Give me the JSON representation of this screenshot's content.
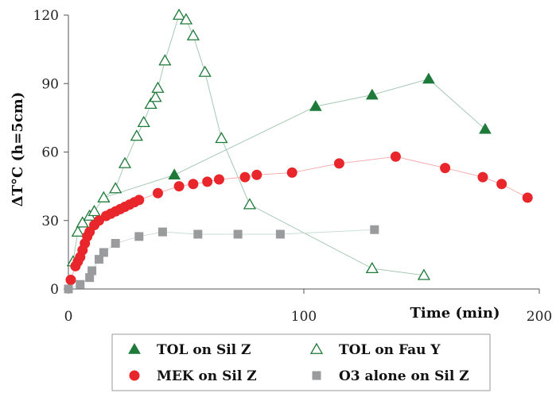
{
  "chart_data": {
    "type": "scatter",
    "xlabel": "Time (min)",
    "ylabel": "ΔT°C (h=5cm)",
    "xlim": [
      0,
      200
    ],
    "ylim": [
      0,
      120
    ],
    "x_ticks": [
      "0",
      "100",
      "200"
    ],
    "y_ticks": [
      "0",
      "30",
      "60",
      "90",
      "120"
    ],
    "grid": false,
    "legend_position": "bottom",
    "series": [
      {
        "name": "TOL on Sil Z",
        "marker": "filled-triangle",
        "color": "#1f7a3a",
        "x": [
          15,
          45,
          105,
          129,
          153,
          177
        ],
        "y": [
          40,
          50,
          80,
          85,
          92,
          70
        ]
      },
      {
        "name": "TOL on Fau Y",
        "marker": "open-triangle",
        "color": "#1f7a3a",
        "x": [
          2,
          4,
          6,
          9,
          11,
          15,
          20,
          24,
          29,
          32,
          35,
          37,
          38,
          41,
          47,
          50,
          53,
          58,
          65,
          77,
          129,
          151
        ],
        "y": [
          12,
          25,
          29,
          32,
          34,
          40,
          44,
          55,
          67,
          73,
          81,
          84,
          88,
          100,
          120,
          118,
          111,
          95,
          66,
          37,
          9,
          6
        ]
      },
      {
        "name": "MEK on Sil Z",
        "marker": "filled-circle",
        "color": "#e8262b",
        "x": [
          1,
          3,
          4,
          5,
          6,
          7,
          8,
          9,
          11,
          13,
          16,
          18,
          20,
          22,
          24,
          26,
          28,
          30,
          38,
          47,
          53,
          59,
          64,
          75,
          80,
          95,
          115,
          139,
          160,
          176,
          184,
          195
        ],
        "y": [
          4,
          10,
          12,
          14,
          17,
          20,
          23,
          25,
          28,
          30,
          32,
          33,
          34,
          35,
          36,
          37,
          38,
          39,
          42,
          45,
          46,
          47,
          48,
          49,
          50,
          51,
          55,
          58,
          53,
          49,
          46,
          40
        ]
      },
      {
        "name": "O3 alone on Sil Z",
        "marker": "filled-square",
        "color": "#9a9b9c",
        "x": [
          0,
          5,
          9,
          10,
          13,
          15,
          20,
          30,
          40,
          55,
          72,
          90,
          130
        ],
        "y": [
          0,
          2,
          5,
          8,
          13,
          16,
          20,
          23,
          25,
          24,
          24,
          24,
          26
        ]
      }
    ]
  }
}
